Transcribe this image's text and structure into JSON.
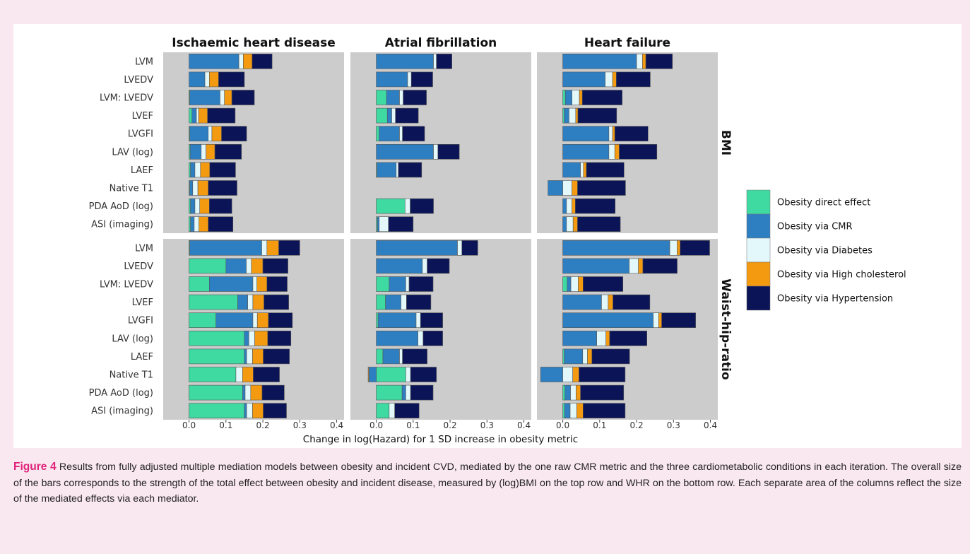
{
  "figure": {
    "caption_label": "Figure 4",
    "caption_text": " Results from fully adjusted multiple mediation models between obesity and incident CVD, mediated by the one raw CMR metric and the three cardiometabolic conditions in each iteration. The overall size of the bars corresponds to the strength of the total effect between obesity and incident disease, measured by (log)BMI on the top row and WHR on the bottom row. Each separate area of the columns reflect the size of the mediated effects via each mediator."
  },
  "chart_data": {
    "type": "bar",
    "orientation": "horizontal",
    "stacked": true,
    "xlabel": "Change in log(Hazard) for 1 SD increase in obesity metric",
    "xlim": [
      -0.07,
      0.42
    ],
    "xticks": [
      0.0,
      0.1,
      0.2,
      0.3,
      0.4
    ],
    "xtick_labels": [
      "0.0",
      "0.1",
      "0.2",
      "0.3",
      "0.4"
    ],
    "grid": false,
    "legend_position": "right",
    "columns": [
      "Ischaemic heart disease",
      "Atrial fibrillation",
      "Heart failure"
    ],
    "rows": [
      "BMI",
      "Waist-hip-ratio"
    ],
    "categories": [
      "LVM",
      "LVEDV",
      "LVM: LVEDV",
      "LVEF",
      "LVGFI",
      "LAV (log)",
      "LAEF",
      "Native T1",
      "PDA AoD (log)",
      "ASI (imaging)"
    ],
    "series": [
      {
        "name": "Obesity direct effect",
        "color": "#3fd9a2"
      },
      {
        "name": "Obesity via CMR",
        "color": "#2e7fc2"
      },
      {
        "name": "Obesity via Diabetes",
        "color": "#e3f8fb"
      },
      {
        "name": "Obesity via High cholesterol",
        "color": "#f39a10"
      },
      {
        "name": "Obesity via Hypertension",
        "color": "#0b1456"
      }
    ],
    "panels": [
      {
        "row": "BMI",
        "column": "Ischaemic heart disease",
        "values": [
          [
            0,
            0.135,
            0.012,
            0.024,
            0.054
          ],
          [
            0,
            0.043,
            0.012,
            0.025,
            0.07
          ],
          [
            0.002,
            0.082,
            0.012,
            0.02,
            0.061
          ],
          [
            0.008,
            0.012,
            0.006,
            0.024,
            0.075
          ],
          [
            0.002,
            0.05,
            0.01,
            0.026,
            0.068
          ],
          [
            0.003,
            0.03,
            0.013,
            0.024,
            0.072
          ],
          [
            0.004,
            0.012,
            0.015,
            0.025,
            0.07
          ],
          [
            0.002,
            0.008,
            0.014,
            0.028,
            0.078
          ],
          [
            0.004,
            0.012,
            0.013,
            0.026,
            0.061
          ],
          [
            0.004,
            0.01,
            0.013,
            0.025,
            0.067
          ]
        ]
      },
      {
        "row": "BMI",
        "column": "Atrial fibrillation",
        "values": [
          [
            0,
            0.155,
            0.008,
            0,
            0.042
          ],
          [
            0,
            0.085,
            0.01,
            0,
            0.058
          ],
          [
            0.028,
            0.035,
            0.01,
            0,
            0.063
          ],
          [
            0.03,
            0.012,
            0.01,
            0,
            0.062
          ],
          [
            0.008,
            0.055,
            0.008,
            0,
            0.06
          ],
          [
            0,
            0.155,
            0.012,
            0,
            0.058
          ],
          [
            0.002,
            0.052,
            0.006,
            0,
            0.063
          ],
          null,
          [
            0.078,
            0,
            0.014,
            0,
            0.063
          ],
          [
            0.003,
            0.005,
            0.025,
            0,
            0.067
          ]
        ]
      },
      {
        "row": "BMI",
        "column": "Heart failure",
        "values": [
          [
            0,
            0.2,
            0.016,
            0.009,
            0.072
          ],
          [
            0,
            0.115,
            0.02,
            0.01,
            0.092
          ],
          [
            0.007,
            0.018,
            0.02,
            0.008,
            0.108
          ],
          [
            0.004,
            0.013,
            0.018,
            0.006,
            0.105
          ],
          [
            0,
            0.125,
            0.01,
            0.006,
            0.09
          ],
          [
            0,
            0.125,
            0.016,
            0.012,
            0.102
          ],
          [
            0,
            0.048,
            0.008,
            0.008,
            0.102
          ],
          [
            0,
            -0.04,
            0.025,
            0.015,
            0.13
          ],
          [
            0,
            0.01,
            0.015,
            0.009,
            0.108
          ],
          [
            0,
            0.01,
            0.018,
            0.012,
            0.116
          ]
        ]
      },
      {
        "row": "Waist-hip-ratio",
        "column": "Ischaemic heart disease",
        "values": [
          [
            0.002,
            0.195,
            0.014,
            0.032,
            0.057
          ],
          [
            0.1,
            0.055,
            0.014,
            0.031,
            0.068
          ],
          [
            0.055,
            0.118,
            0.011,
            0.027,
            0.055
          ],
          [
            0.132,
            0.027,
            0.014,
            0.03,
            0.067
          ],
          [
            0.073,
            0.1,
            0.012,
            0.03,
            0.065
          ],
          [
            0.15,
            0.012,
            0.016,
            0.035,
            0.063
          ],
          [
            0.15,
            0.006,
            0.016,
            0.029,
            0.071
          ],
          [
            0.127,
            0,
            0.018,
            0.029,
            0.071
          ],
          [
            0.145,
            0.007,
            0.015,
            0.031,
            0.06
          ],
          [
            0.15,
            0.006,
            0.016,
            0.029,
            0.063
          ]
        ]
      },
      {
        "row": "Waist-hip-ratio",
        "column": "Atrial fibrillation",
        "values": [
          [
            0,
            0.22,
            0.012,
            0,
            0.043
          ],
          [
            0,
            0.125,
            0.013,
            0,
            0.06
          ],
          [
            0.035,
            0.045,
            0.009,
            0,
            0.065
          ],
          [
            0.025,
            0.042,
            0.015,
            0,
            0.066
          ],
          [
            0.005,
            0.103,
            0.012,
            0,
            0.06
          ],
          [
            0,
            0.113,
            0.014,
            0,
            0.053
          ],
          [
            0.018,
            0.045,
            0.008,
            0,
            0.067
          ],
          [
            0.08,
            -0.02,
            0.013,
            -0.002,
            0.07
          ],
          [
            0.07,
            0.01,
            0.013,
            0,
            0.061
          ],
          [
            0.035,
            0,
            0.015,
            0,
            0.066
          ]
        ]
      },
      {
        "row": "Waist-hip-ratio",
        "column": "Heart failure",
        "values": [
          [
            0,
            0.29,
            0.02,
            0.008,
            0.08
          ],
          [
            0,
            0.18,
            0.025,
            0.012,
            0.093
          ],
          [
            0.012,
            0.01,
            0.02,
            0.013,
            0.108
          ],
          [
            0,
            0.105,
            0.018,
            0.013,
            0.1
          ],
          [
            0,
            0.245,
            0.015,
            0.008,
            0.092
          ],
          [
            0,
            0.092,
            0.025,
            0.01,
            0.101
          ],
          [
            0.004,
            0.05,
            0.013,
            0.012,
            0.102
          ],
          [
            0,
            -0.06,
            0.027,
            0.017,
            0.125
          ],
          [
            0.006,
            0.015,
            0.015,
            0.012,
            0.117
          ],
          [
            0.005,
            0.015,
            0.018,
            0.017,
            0.114
          ]
        ]
      }
    ]
  }
}
